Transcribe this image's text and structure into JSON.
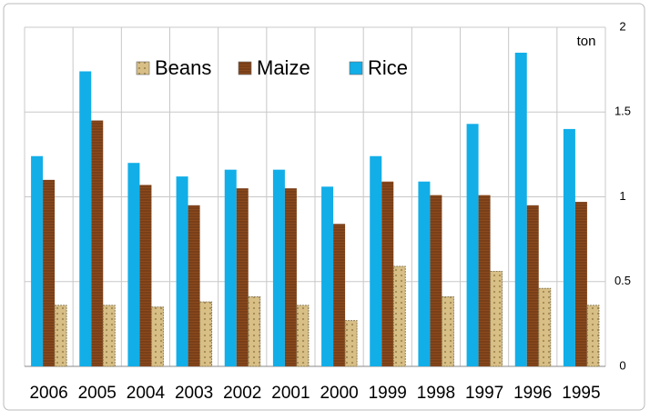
{
  "chart_data": {
    "type": "bar",
    "ylabel": "ton",
    "categories": [
      "2006",
      "2005",
      "2004",
      "2003",
      "2002",
      "2001",
      "2000",
      "1999",
      "1998",
      "1997",
      "1996",
      "1995"
    ],
    "series": [
      {
        "name": "Rice",
        "color": "#12aee8",
        "values": [
          1.24,
          1.74,
          1.2,
          1.12,
          1.16,
          1.16,
          1.06,
          1.24,
          1.09,
          1.43,
          1.85,
          1.4
        ]
      },
      {
        "name": "Maize",
        "color": "#8b4a1e",
        "values": [
          1.1,
          1.45,
          1.07,
          0.95,
          1.05,
          1.05,
          0.84,
          1.09,
          1.01,
          1.01,
          0.95,
          0.97
        ]
      },
      {
        "name": "Beans",
        "color": "#d8bf86",
        "values": [
          0.36,
          0.36,
          0.35,
          0.38,
          0.41,
          0.36,
          0.27,
          0.59,
          0.41,
          0.56,
          0.46,
          0.36
        ]
      }
    ],
    "legend_order": [
      2,
      1,
      0
    ],
    "ylim": [
      0,
      2
    ],
    "yticks": [
      0,
      0.5,
      1,
      1.5,
      2
    ],
    "grid": true,
    "legend": "top"
  }
}
